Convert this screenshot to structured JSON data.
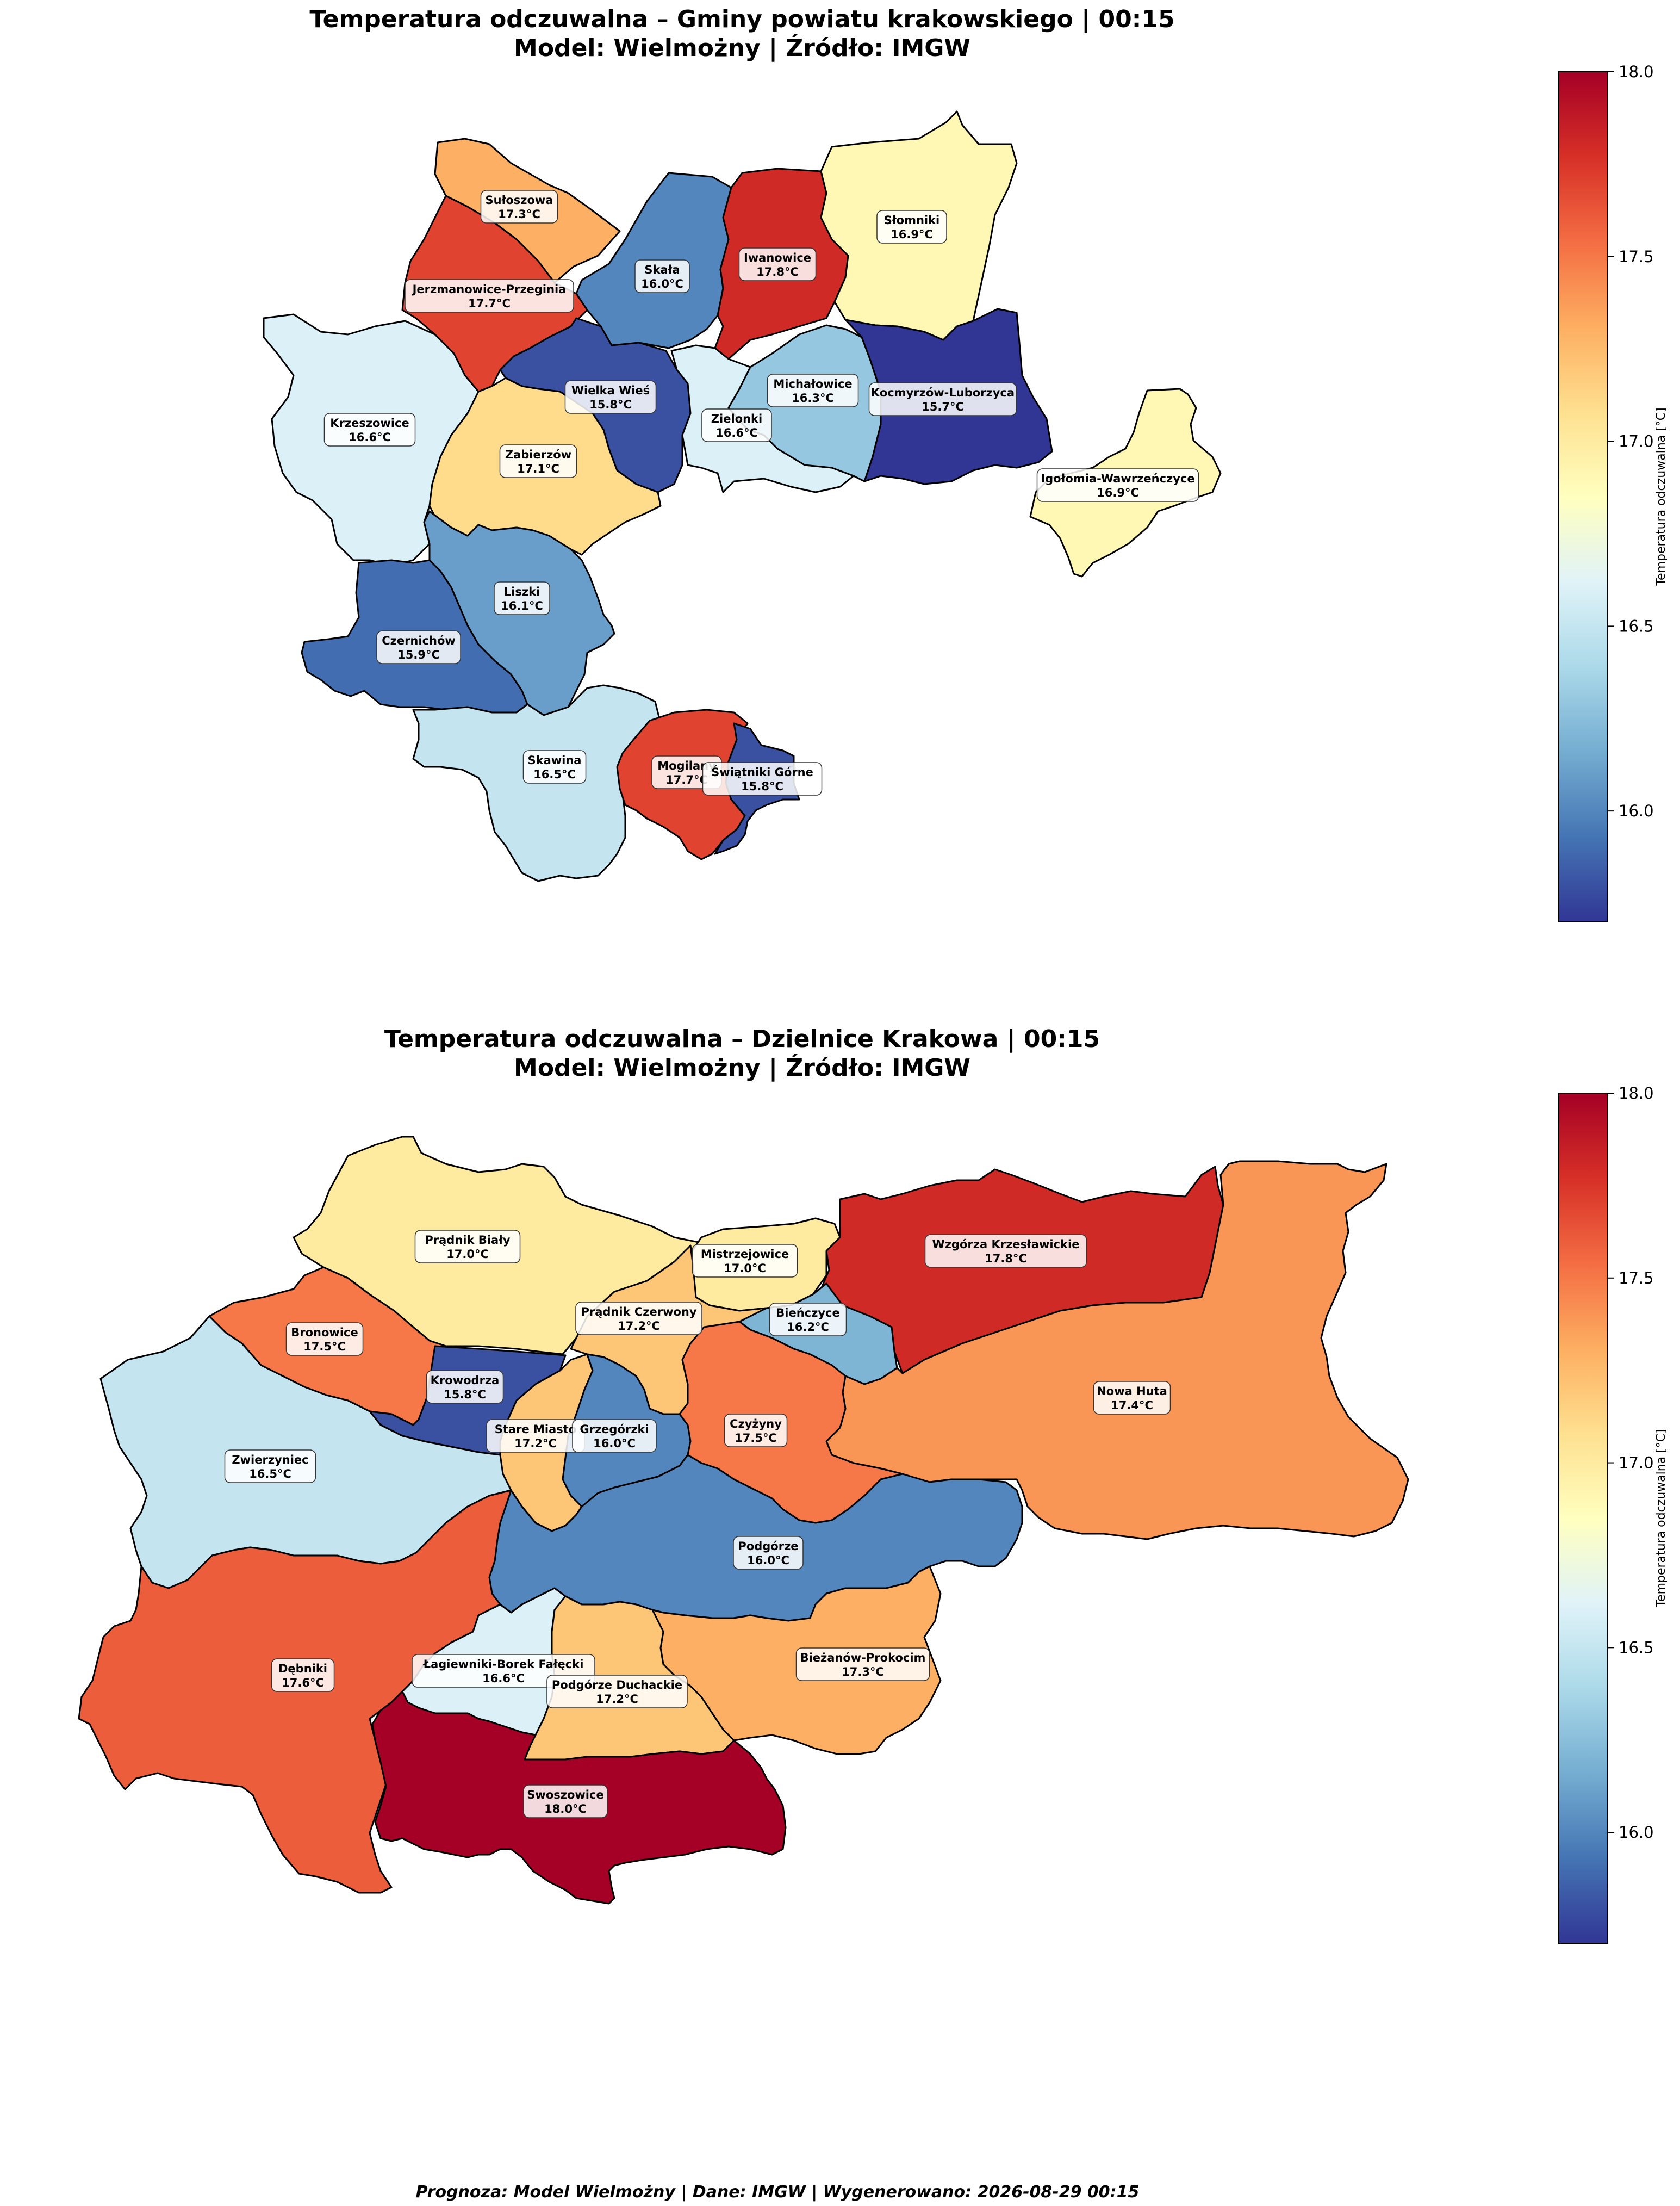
{
  "maps": [
    {
      "title_line1": "Temperatura odczuwalna – Gminy powiatu krakowskiego | 00:15",
      "title_line2": "Model: Wielmożny | Źródło: IMGW",
      "colorbar_label": "Temperatura odczuwalna [°C]",
      "colorbar_range": [
        15.7,
        18.0
      ],
      "colorbar_ticks": [
        "16.0",
        "16.5",
        "17.0",
        "17.5",
        "18.0"
      ],
      "colorbar_tick_values": [
        16.0,
        16.5,
        17.0,
        17.5,
        18.0
      ],
      "regions": [
        {
          "name": "Sułoszowa",
          "value": 17.3,
          "label": "17.3°C"
        },
        {
          "name": "Skała",
          "value": 16.0,
          "label": "16.0°C"
        },
        {
          "name": "Iwanowice",
          "value": 17.8,
          "label": "17.8°C"
        },
        {
          "name": "Słomniki",
          "value": 16.9,
          "label": "16.9°C"
        },
        {
          "name": "Jerzmanowice-Przeginia",
          "value": 17.7,
          "label": "17.7°C"
        },
        {
          "name": "Wielka Wieś",
          "value": 15.8,
          "label": "15.8°C"
        },
        {
          "name": "Michałowice",
          "value": 16.3,
          "label": "16.3°C"
        },
        {
          "name": "Kocmyrzów-Luborzyca",
          "value": 15.7,
          "label": "15.7°C"
        },
        {
          "name": "Zielonki",
          "value": 16.6,
          "label": "16.6°C"
        },
        {
          "name": "Krzeszowice",
          "value": 16.6,
          "label": "16.6°C"
        },
        {
          "name": "Zabierzów",
          "value": 17.1,
          "label": "17.1°C"
        },
        {
          "name": "Igołomia-Wawrzeńczyce",
          "value": 16.9,
          "label": "16.9°C"
        },
        {
          "name": "Liszki",
          "value": 16.1,
          "label": "16.1°C"
        },
        {
          "name": "Czernichów",
          "value": 15.9,
          "label": "15.9°C"
        },
        {
          "name": "Skawina",
          "value": 16.5,
          "label": "16.5°C"
        },
        {
          "name": "Mogilany",
          "value": 17.7,
          "label": "17.7°C"
        },
        {
          "name": "Świątniki Górne",
          "value": 15.8,
          "label": "15.8°C"
        }
      ]
    },
    {
      "title_line1": "Temperatura odczuwalna – Dzielnice Krakowa | 00:15",
      "title_line2": "Model: Wielmożny | Źródło: IMGW",
      "colorbar_label": "Temperatura odczuwalna [°C]",
      "colorbar_range": [
        15.7,
        18.0
      ],
      "colorbar_ticks": [
        "16.0",
        "16.5",
        "17.0",
        "17.5",
        "18.0"
      ],
      "colorbar_tick_values": [
        16.0,
        16.5,
        17.0,
        17.5,
        18.0
      ],
      "regions": [
        {
          "name": "Prądnik Biały",
          "value": 17.0,
          "label": "17.0°C"
        },
        {
          "name": "Mistrzejowice",
          "value": 17.0,
          "label": "17.0°C"
        },
        {
          "name": "Wzgórza Krzesławickie",
          "value": 17.8,
          "label": "17.8°C"
        },
        {
          "name": "Bronowice",
          "value": 17.5,
          "label": "17.5°C"
        },
        {
          "name": "Prądnik Czerwony",
          "value": 17.2,
          "label": "17.2°C"
        },
        {
          "name": "Bieńczyce",
          "value": 16.2,
          "label": "16.2°C"
        },
        {
          "name": "Krowodrza",
          "value": 15.8,
          "label": "15.8°C"
        },
        {
          "name": "Nowa Huta",
          "value": 17.4,
          "label": "17.4°C"
        },
        {
          "name": "Stare Miasto",
          "value": 17.2,
          "label": "17.2°C"
        },
        {
          "name": "Grzegórzki",
          "value": 16.0,
          "label": "16.0°C"
        },
        {
          "name": "Czyżyny",
          "value": 17.5,
          "label": "17.5°C"
        },
        {
          "name": "Zwierzyniec",
          "value": 16.5,
          "label": "16.5°C"
        },
        {
          "name": "Podgórze",
          "value": 16.0,
          "label": "16.0°C"
        },
        {
          "name": "Dębniki",
          "value": 17.6,
          "label": "17.6°C"
        },
        {
          "name": "Łagiewniki-Borek Fałęcki",
          "value": 16.6,
          "label": "16.6°C"
        },
        {
          "name": "Bieżanów-Prokocim",
          "value": 17.3,
          "label": "17.3°C"
        },
        {
          "name": "Podgórze Duchackie",
          "value": 17.2,
          "label": "17.2°C"
        },
        {
          "name": "Swoszowice",
          "value": 18.0,
          "label": "18.0°C"
        }
      ]
    }
  ],
  "colormap": "RdYlBu_r",
  "footer": "Prognoza: Model Wielmożny | Dane: IMGW | Wygenerowano: 2026-08-29 00:15"
}
